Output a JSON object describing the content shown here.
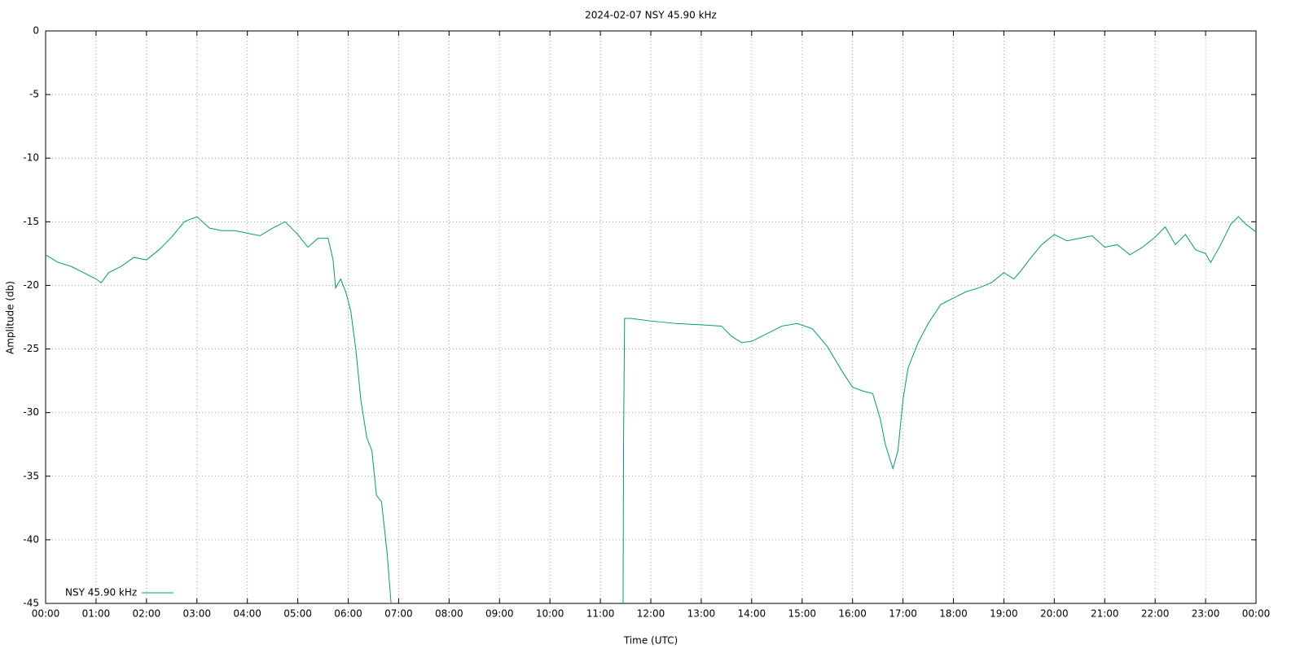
{
  "chart_data": {
    "type": "line",
    "title": "2024-02-07 NSY 45.90 kHz",
    "x_label": "Time (UTC)",
    "y_label": "Amplitude (db)",
    "x": [
      0,
      0.25,
      0.5,
      0.75,
      1.0,
      1.1,
      1.25,
      1.5,
      1.75,
      2.0,
      2.25,
      2.5,
      2.75,
      3.0,
      3.25,
      3.5,
      3.75,
      4.0,
      4.25,
      4.5,
      4.75,
      5.0,
      5.2,
      5.4,
      5.6,
      5.7,
      5.75,
      5.85,
      5.95,
      6.05,
      6.15,
      6.25,
      6.37,
      6.47,
      6.56,
      6.66,
      6.77,
      6.85,
      9.0,
      11.45,
      11.46,
      11.48,
      11.6,
      12.0,
      12.5,
      13.0,
      13.4,
      13.6,
      13.8,
      14.0,
      14.3,
      14.6,
      14.9,
      15.2,
      15.5,
      15.8,
      16.0,
      16.2,
      16.4,
      16.55,
      16.65,
      16.8,
      16.9,
      17.0,
      17.1,
      17.3,
      17.5,
      17.75,
      18.0,
      18.25,
      18.5,
      18.75,
      19.0,
      19.2,
      19.35,
      19.5,
      19.75,
      20.0,
      20.25,
      20.5,
      20.75,
      21.0,
      21.25,
      21.5,
      21.75,
      22.0,
      22.2,
      22.4,
      22.6,
      22.8,
      23.0,
      23.1,
      23.3,
      23.5,
      23.65,
      23.8,
      24.0
    ],
    "series": [
      {
        "name": "NSY 45.90 kHz",
        "color": "#009e73",
        "values": [
          -17.6,
          -18.2,
          -18.5,
          -19.0,
          -19.5,
          -19.8,
          -19.0,
          -18.5,
          -17.8,
          -18.0,
          -17.2,
          -16.2,
          -15.0,
          -14.6,
          -15.5,
          -15.7,
          -15.7,
          -15.9,
          -16.1,
          -15.5,
          -15.0,
          -16.0,
          -17.0,
          -16.3,
          -16.3,
          -18.0,
          -20.2,
          -19.5,
          -20.5,
          -22.0,
          -25.0,
          -29.0,
          -32.0,
          -33.0,
          -36.5,
          -37.0,
          -41.0,
          -45.0,
          null,
          -45.0,
          -32.0,
          -22.6,
          -22.6,
          -22.8,
          -23.0,
          -23.1,
          -23.2,
          -24.0,
          -24.5,
          -24.4,
          -23.8,
          -23.2,
          -23.0,
          -23.4,
          -24.8,
          -26.8,
          -28.0,
          -28.3,
          -28.5,
          -30.5,
          -32.5,
          -34.4,
          -33.0,
          -29.0,
          -26.5,
          -24.5,
          -23.0,
          -21.5,
          -21.0,
          -20.5,
          -20.2,
          -19.8,
          -19.0,
          -19.5,
          -18.8,
          -18.0,
          -16.8,
          -16.0,
          -16.5,
          -16.3,
          -16.1,
          -17.0,
          -16.8,
          -17.6,
          -17.0,
          -16.2,
          -15.4,
          -16.8,
          -16.0,
          -17.2,
          -17.5,
          -18.2,
          -16.8,
          -15.2,
          -14.6,
          -15.2,
          -15.8
        ]
      }
    ],
    "xlim": [
      0,
      24
    ],
    "xticks": [
      {
        "value": 0,
        "label": "00:00"
      },
      {
        "value": 1,
        "label": "01:00"
      },
      {
        "value": 2,
        "label": "02:00"
      },
      {
        "value": 3,
        "label": "03:00"
      },
      {
        "value": 4,
        "label": "04:00"
      },
      {
        "value": 5,
        "label": "05:00"
      },
      {
        "value": 6,
        "label": "06:00"
      },
      {
        "value": 7,
        "label": "07:00"
      },
      {
        "value": 8,
        "label": "08:00"
      },
      {
        "value": 9,
        "label": "09:00"
      },
      {
        "value": 10,
        "label": "10:00"
      },
      {
        "value": 11,
        "label": "11:00"
      },
      {
        "value": 12,
        "label": "12:00"
      },
      {
        "value": 13,
        "label": "13:00"
      },
      {
        "value": 14,
        "label": "14:00"
      },
      {
        "value": 15,
        "label": "15:00"
      },
      {
        "value": 16,
        "label": "16:00"
      },
      {
        "value": 17,
        "label": "17:00"
      },
      {
        "value": 18,
        "label": "18:00"
      },
      {
        "value": 19,
        "label": "19:00"
      },
      {
        "value": 20,
        "label": "20:00"
      },
      {
        "value": 21,
        "label": "21:00"
      },
      {
        "value": 22,
        "label": "22:00"
      },
      {
        "value": 23,
        "label": "23:00"
      },
      {
        "value": 24,
        "label": "00:00"
      }
    ],
    "ylim": [
      -45,
      0
    ],
    "yticks": [
      0,
      -5,
      -10,
      -15,
      -20,
      -25,
      -30,
      -35,
      -40,
      -45
    ],
    "grid": true,
    "legend": "bottom-left"
  }
}
